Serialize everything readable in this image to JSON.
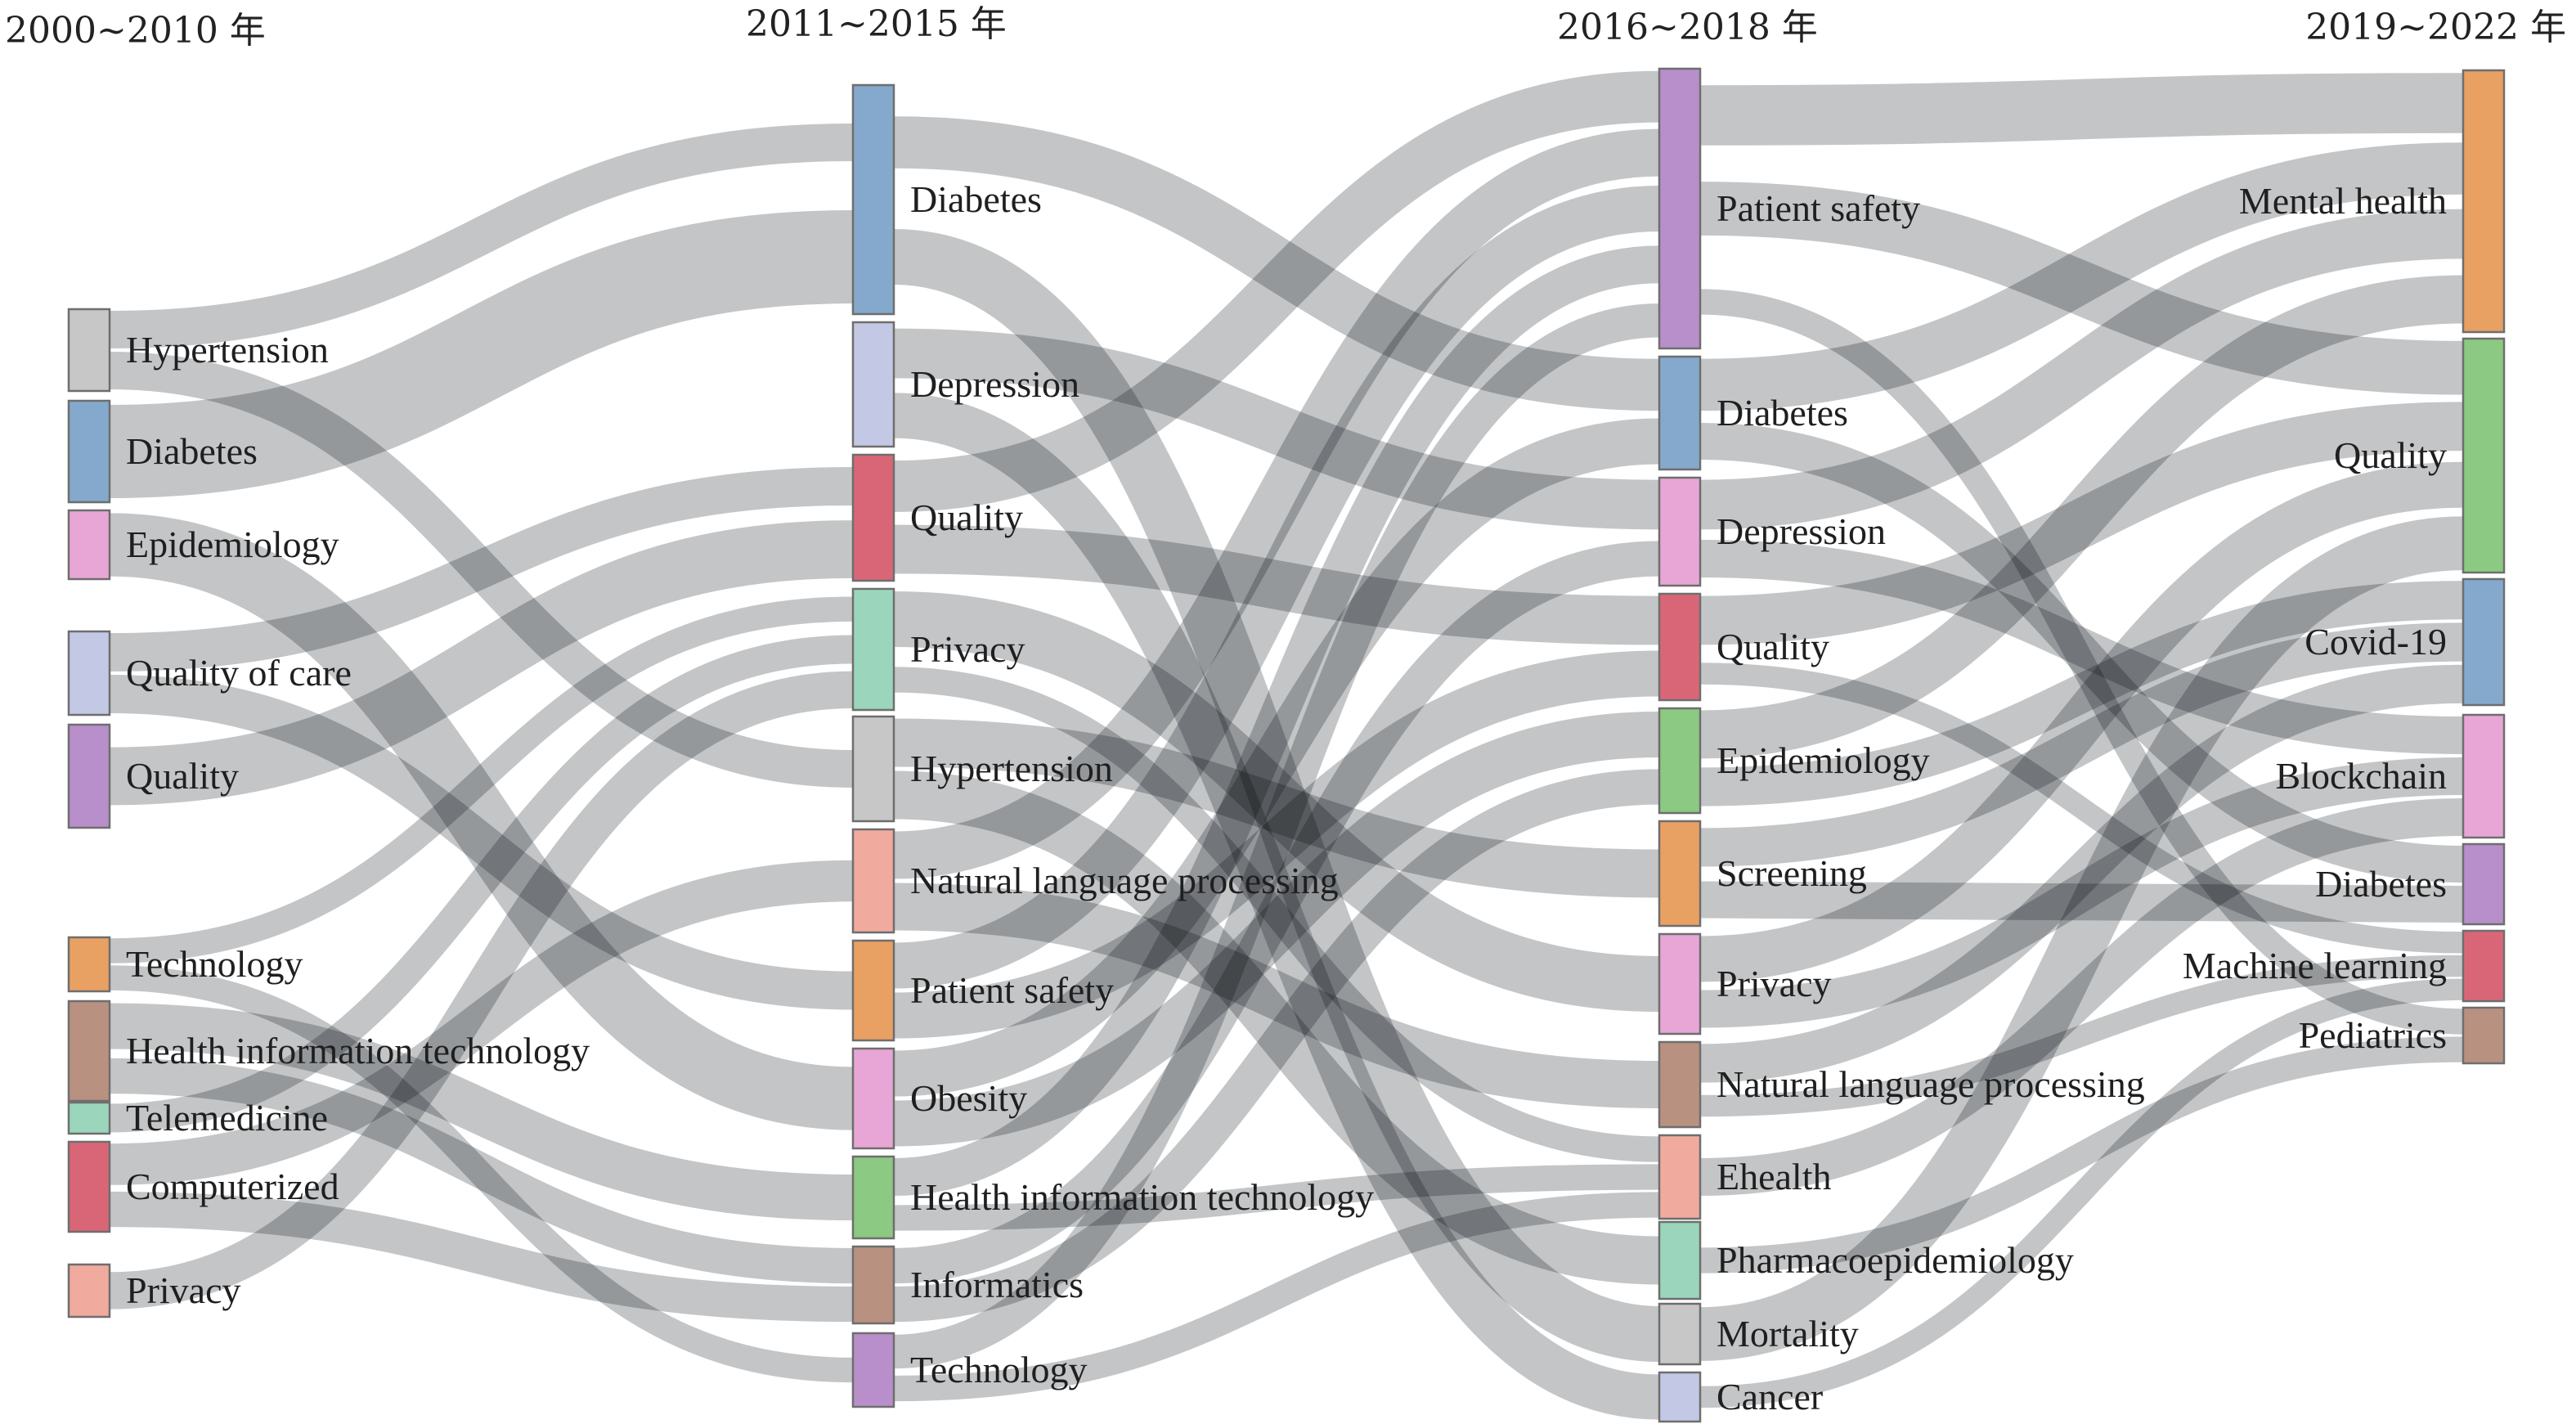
{
  "columns": [
    {
      "header": "2000~2010 年",
      "nodes": [
        {
          "label": "Hypertension",
          "color": "#c7c7c7"
        },
        {
          "label": "Diabetes",
          "color": "#84a9cc"
        },
        {
          "label": "Epidemiology",
          "color": "#e8a6d6"
        },
        {
          "label": "Quality of care",
          "color": "#c3c8e4"
        },
        {
          "label": "Quality",
          "color": "#b88fca"
        },
        {
          "label": "Technology",
          "color": "#e9a063"
        },
        {
          "label": "Health information technology",
          "color": "#b99181"
        },
        {
          "label": "Telemedicine",
          "color": "#9bd6bc"
        },
        {
          "label": "Computerized",
          "color": "#d96677"
        },
        {
          "label": "Privacy",
          "color": "#f0aa9e"
        }
      ]
    },
    {
      "header": "2011~2015 年",
      "nodes": [
        {
          "label": "Diabetes",
          "color": "#84a9cc"
        },
        {
          "label": "Depression",
          "color": "#c3c8e4"
        },
        {
          "label": "Quality",
          "color": "#d96677"
        },
        {
          "label": "Privacy",
          "color": "#9bd6bc"
        },
        {
          "label": "Hypertension",
          "color": "#c7c7c7"
        },
        {
          "label": "Natural language processing",
          "color": "#f0aa9e"
        },
        {
          "label": "Patient safety",
          "color": "#e9a063"
        },
        {
          "label": "Obesity",
          "color": "#e8a6d6"
        },
        {
          "label": "Health information technology",
          "color": "#8cc982"
        },
        {
          "label": "Informatics",
          "color": "#b99181"
        },
        {
          "label": "Technology",
          "color": "#b88fca"
        }
      ]
    },
    {
      "header": "2016~2018 年",
      "nodes": [
        {
          "label": "Patient safety",
          "color": "#b88fca"
        },
        {
          "label": "Diabetes",
          "color": "#84a9cc"
        },
        {
          "label": "Depression",
          "color": "#e8a6d6"
        },
        {
          "label": "Quality",
          "color": "#d96677"
        },
        {
          "label": "Epidemiology",
          "color": "#8cc982"
        },
        {
          "label": "Screening",
          "color": "#e9a063"
        },
        {
          "label": "Privacy",
          "color": "#e8a6d6"
        },
        {
          "label": "Natural language processing",
          "color": "#b99181"
        },
        {
          "label": "Ehealth",
          "color": "#f0aa9e"
        },
        {
          "label": "Pharmacoepidemiology",
          "color": "#9bd6bc"
        },
        {
          "label": "Mortality",
          "color": "#c7c7c7"
        },
        {
          "label": "Cancer",
          "color": "#c3c8e4"
        }
      ]
    },
    {
      "header": "2019~2022 年",
      "nodes": [
        {
          "label": "Mental health",
          "color": "#e9a063"
        },
        {
          "label": "Quality",
          "color": "#8cc982"
        },
        {
          "label": "Covid-19",
          "color": "#84a9cc"
        },
        {
          "label": "Blockchain",
          "color": "#e8a6d6"
        },
        {
          "label": "Diabetes",
          "color": "#b88fca"
        },
        {
          "label": "Machine learning",
          "color": "#d96677"
        },
        {
          "label": "Pediatrics",
          "color": "#b99181"
        }
      ]
    }
  ],
  "links": [
    {
      "from": [
        0,
        0
      ],
      "to": [
        1,
        0
      ]
    },
    {
      "from": [
        0,
        0
      ],
      "to": [
        1,
        4
      ]
    },
    {
      "from": [
        0,
        1
      ],
      "to": [
        1,
        0
      ]
    },
    {
      "from": [
        0,
        2
      ],
      "to": [
        1,
        7
      ]
    },
    {
      "from": [
        0,
        3
      ],
      "to": [
        1,
        2
      ]
    },
    {
      "from": [
        0,
        3
      ],
      "to": [
        1,
        6
      ]
    },
    {
      "from": [
        0,
        4
      ],
      "to": [
        1,
        2
      ]
    },
    {
      "from": [
        0,
        5
      ],
      "to": [
        1,
        3
      ]
    },
    {
      "from": [
        0,
        5
      ],
      "to": [
        1,
        10
      ]
    },
    {
      "from": [
        0,
        6
      ],
      "to": [
        1,
        8
      ]
    },
    {
      "from": [
        0,
        6
      ],
      "to": [
        1,
        9
      ]
    },
    {
      "from": [
        0,
        7
      ],
      "to": [
        1,
        3
      ]
    },
    {
      "from": [
        0,
        8
      ],
      "to": [
        1,
        5
      ]
    },
    {
      "from": [
        0,
        8
      ],
      "to": [
        1,
        9
      ]
    },
    {
      "from": [
        0,
        9
      ],
      "to": [
        1,
        3
      ]
    },
    {
      "from": [
        1,
        0
      ],
      "to": [
        2,
        1
      ]
    },
    {
      "from": [
        1,
        0
      ],
      "to": [
        2,
        10
      ]
    },
    {
      "from": [
        1,
        1
      ],
      "to": [
        2,
        2
      ]
    },
    {
      "from": [
        1,
        1
      ],
      "to": [
        2,
        11
      ]
    },
    {
      "from": [
        1,
        2
      ],
      "to": [
        2,
        3
      ]
    },
    {
      "from": [
        1,
        2
      ],
      "to": [
        2,
        0
      ]
    },
    {
      "from": [
        1,
        3
      ],
      "to": [
        2,
        6
      ]
    },
    {
      "from": [
        1,
        3
      ],
      "to": [
        2,
        8
      ]
    },
    {
      "from": [
        1,
        4
      ],
      "to": [
        2,
        5
      ]
    },
    {
      "from": [
        1,
        4
      ],
      "to": [
        2,
        9
      ]
    },
    {
      "from": [
        1,
        5
      ],
      "to": [
        2,
        7
      ]
    },
    {
      "from": [
        1,
        5
      ],
      "to": [
        2,
        0
      ]
    },
    {
      "from": [
        1,
        6
      ],
      "to": [
        2,
        0
      ]
    },
    {
      "from": [
        1,
        6
      ],
      "to": [
        2,
        3
      ]
    },
    {
      "from": [
        1,
        7
      ],
      "to": [
        2,
        4
      ]
    },
    {
      "from": [
        1,
        7
      ],
      "to": [
        2,
        1
      ]
    },
    {
      "from": [
        1,
        8
      ],
      "to": [
        2,
        8
      ]
    },
    {
      "from": [
        1,
        8
      ],
      "to": [
        2,
        0
      ]
    },
    {
      "from": [
        1,
        9
      ],
      "to": [
        2,
        4
      ]
    },
    {
      "from": [
        1,
        9
      ],
      "to": [
        2,
        2
      ]
    },
    {
      "from": [
        1,
        10
      ],
      "to": [
        2,
        8
      ]
    },
    {
      "from": [
        1,
        10
      ],
      "to": [
        2,
        0
      ]
    },
    {
      "from": [
        2,
        0
      ],
      "to": [
        3,
        1
      ]
    },
    {
      "from": [
        2,
        0
      ],
      "to": [
        3,
        0
      ]
    },
    {
      "from": [
        2,
        0
      ],
      "to": [
        3,
        6
      ]
    },
    {
      "from": [
        2,
        1
      ],
      "to": [
        3,
        4
      ]
    },
    {
      "from": [
        2,
        1
      ],
      "to": [
        3,
        0
      ]
    },
    {
      "from": [
        2,
        2
      ],
      "to": [
        3,
        0
      ]
    },
    {
      "from": [
        2,
        2
      ],
      "to": [
        3,
        3
      ]
    },
    {
      "from": [
        2,
        3
      ],
      "to": [
        3,
        1
      ]
    },
    {
      "from": [
        2,
        3
      ],
      "to": [
        3,
        5
      ]
    },
    {
      "from": [
        2,
        4
      ],
      "to": [
        3,
        0
      ]
    },
    {
      "from": [
        2,
        4
      ],
      "to": [
        3,
        2
      ]
    },
    {
      "from": [
        2,
        5
      ],
      "to": [
        3,
        2
      ]
    },
    {
      "from": [
        2,
        5
      ],
      "to": [
        3,
        4
      ]
    },
    {
      "from": [
        2,
        6
      ],
      "to": [
        3,
        3
      ]
    },
    {
      "from": [
        2,
        6
      ],
      "to": [
        3,
        1
      ]
    },
    {
      "from": [
        2,
        7
      ],
      "to": [
        3,
        5
      ]
    },
    {
      "from": [
        2,
        7
      ],
      "to": [
        3,
        2
      ]
    },
    {
      "from": [
        2,
        8
      ],
      "to": [
        3,
        3
      ]
    },
    {
      "from": [
        2,
        9
      ],
      "to": [
        3,
        6
      ]
    },
    {
      "from": [
        2,
        10
      ],
      "to": [
        3,
        1
      ]
    },
    {
      "from": [
        2,
        11
      ],
      "to": [
        3,
        5
      ]
    }
  ]
}
